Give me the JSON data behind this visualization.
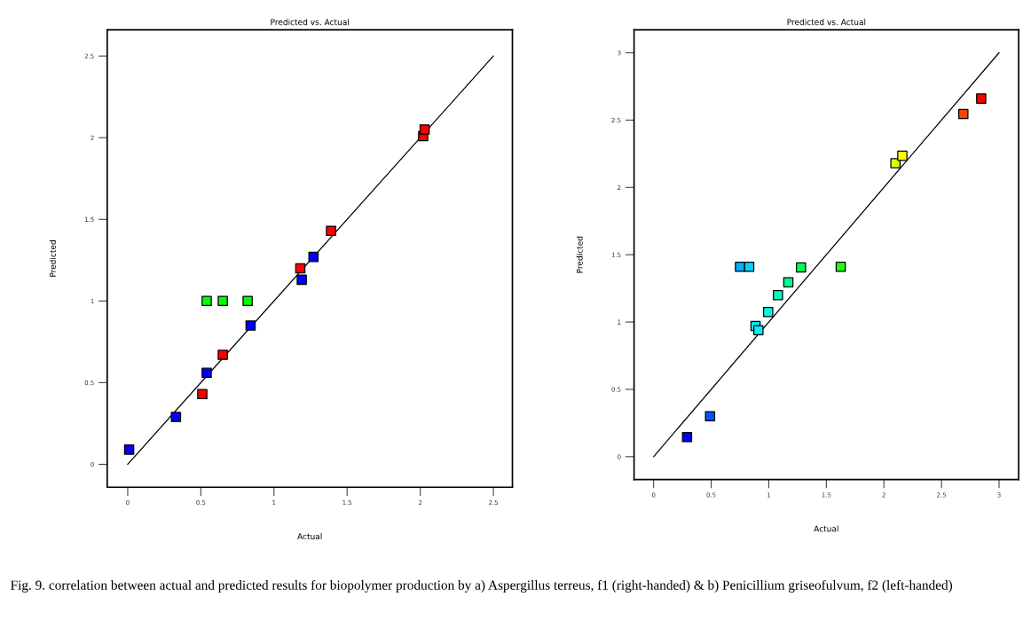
{
  "chart_data": [
    {
      "type": "scatter",
      "title": "Predicted vs. Actual",
      "xlabel": "Actual",
      "ylabel": "Predicted",
      "xlim": [
        -0.14,
        2.63
      ],
      "ylim": [
        -0.14,
        2.66
      ],
      "xticks": [
        0,
        0.5,
        1,
        1.5,
        2,
        2.5
      ],
      "yticks": [
        0,
        0.5,
        1,
        1.5,
        2,
        2.5
      ],
      "grid": false,
      "legend": false,
      "marker": "square",
      "series": [
        {
          "type": "scatter",
          "x": [
            0.01,
            0.33,
            0.54,
            0.84,
            1.19,
            1.27,
            0.51,
            0.65,
            1.18,
            1.39,
            2.02,
            2.03,
            0.54,
            0.65,
            0.82
          ],
          "values": [
            0.09,
            0.29,
            0.56,
            0.85,
            1.13,
            1.27,
            0.43,
            0.67,
            1.2,
            1.43,
            2.01,
            2.05,
            1.0,
            1.0,
            1.0
          ],
          "colors": [
            "#0000ff",
            "#0000ff",
            "#0000ff",
            "#0000ff",
            "#0000ff",
            "#0000ff",
            "#ff0000",
            "#ff0000",
            "#ff0000",
            "#ff0000",
            "#ff0000",
            "#ff0000",
            "#00ff00",
            "#00ff00",
            "#00ff00"
          ]
        },
        {
          "type": "line",
          "x": [
            0,
            2.5
          ],
          "values": [
            0,
            2.5
          ],
          "color": "#000000",
          "marker": "none"
        }
      ]
    },
    {
      "type": "scatter",
      "title": "Predicted vs. Actual",
      "xlabel": "Actual",
      "ylabel": "Predicted",
      "xlim": [
        -0.17,
        3.17
      ],
      "ylim": [
        -0.17,
        3.17
      ],
      "xticks": [
        0,
        0.5,
        1,
        1.5,
        2,
        2.5,
        3
      ],
      "yticks": [
        0,
        0.5,
        1,
        1.5,
        2,
        2.5,
        3
      ],
      "grid": false,
      "legend": false,
      "marker": "square",
      "series": [
        {
          "type": "scatter",
          "x": [
            0.29,
            0.49,
            0.75,
            0.83,
            0.885,
            0.91,
            0.995,
            1.08,
            1.17,
            1.28,
            1.625,
            2.1,
            2.16,
            2.69,
            2.845
          ],
          "values": [
            0.145,
            0.3,
            1.41,
            1.41,
            0.97,
            0.94,
            1.075,
            1.2,
            1.295,
            1.405,
            1.41,
            2.18,
            2.235,
            2.545,
            2.66
          ],
          "colors": [
            "#0000ff",
            "#0055ff",
            "#00b0ff",
            "#00d0ff",
            "#00e8ff",
            "#00f0f0",
            "#00ffe0",
            "#00ffc0",
            "#00ff99",
            "#00ff50",
            "#22ff00",
            "#ddff00",
            "#ffff00",
            "#ff4400",
            "#ff0000"
          ]
        },
        {
          "type": "line",
          "x": [
            0,
            3
          ],
          "values": [
            0,
            3
          ],
          "color": "#000000",
          "marker": "none"
        }
      ]
    },
    {
      "type": "other",
      "annotations": [
        "Fig. 9. correlation between actual and predicted results for biopolymer production by a) Aspergillus terreus, f1 (right-handed) & b) Penicillium griseofulvum, f2 (left-handed)"
      ]
    }
  ]
}
